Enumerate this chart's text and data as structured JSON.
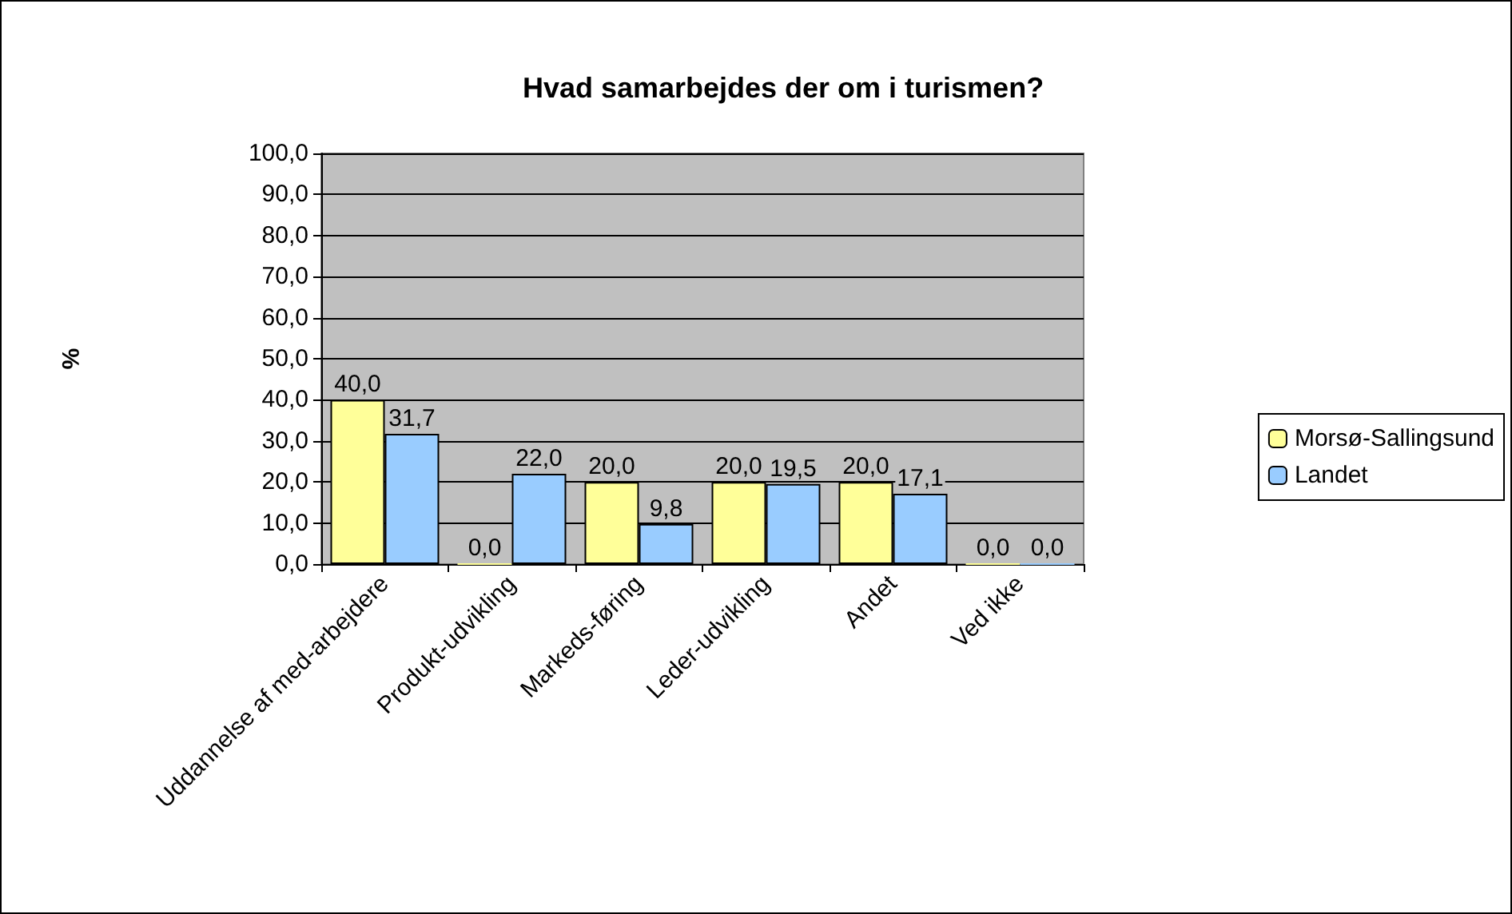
{
  "chart_data": {
    "type": "bar",
    "title": "Hvad samarbejdes der om i turismen?",
    "ylabel": "%",
    "categories": [
      "Uddannelse af med-arbejdere",
      "Produkt-udvikling",
      "Markeds-føring",
      "Leder-udvikling",
      "Andet",
      "Ved ikke"
    ],
    "series": [
      {
        "name": "Morsø-Sallingsund",
        "color": "#ffff99",
        "values": [
          40.0,
          0.0,
          20.0,
          20.0,
          20.0,
          0.0
        ],
        "value_labels": [
          "40,0",
          "0,0",
          "20,0",
          "20,0",
          "20,0",
          "0,0"
        ]
      },
      {
        "name": "Landet",
        "color": "#99ccff",
        "values": [
          31.7,
          22.0,
          9.8,
          19.5,
          17.1,
          0.0
        ],
        "value_labels": [
          "31,7",
          "22,0",
          "9,8",
          "19,5",
          "17,1",
          "0,0"
        ]
      }
    ],
    "ylim": [
      0,
      100
    ],
    "yticks": [
      {
        "value": 0,
        "label": "0,0"
      },
      {
        "value": 10,
        "label": "10,0"
      },
      {
        "value": 20,
        "label": "20,0"
      },
      {
        "value": 30,
        "label": "30,0"
      },
      {
        "value": 40,
        "label": "40,0"
      },
      {
        "value": 50,
        "label": "50,0"
      },
      {
        "value": 60,
        "label": "60,0"
      },
      {
        "value": 70,
        "label": "70,0"
      },
      {
        "value": 80,
        "label": "80,0"
      },
      {
        "value": 90,
        "label": "90,0"
      },
      {
        "value": 100,
        "label": "100,0"
      }
    ],
    "grid": "y",
    "legend": "right"
  }
}
